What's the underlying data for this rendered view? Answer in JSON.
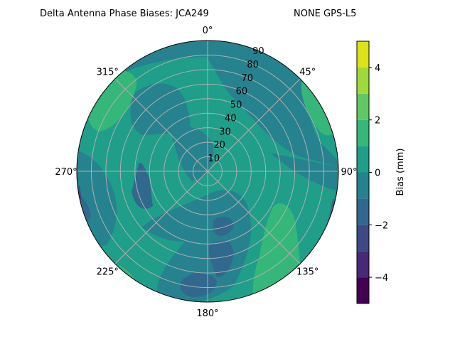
{
  "chart_data": {
    "type": "contour",
    "projection": "polar",
    "title": "Delta Antenna Phase Biases: JCA249         NONE GPS-L5",
    "title_left": "Delta Antenna Phase Biases: JCA249",
    "title_right": "NONE GPS-L5",
    "theta_ticks": [
      "0°",
      "45°",
      "90°",
      "135°",
      "180°",
      "225°",
      "270°",
      "315°"
    ],
    "theta_tick_angles": [
      0,
      45,
      90,
      135,
      180,
      225,
      270,
      315
    ],
    "theta_direction": "clockwise",
    "theta_zero": "top",
    "r_ticks": [
      "10",
      "20",
      "30",
      "40",
      "50",
      "60",
      "70",
      "80",
      "90"
    ],
    "r_tick_values": [
      10,
      20,
      30,
      40,
      50,
      60,
      70,
      80,
      90
    ],
    "r_range": [
      0,
      90
    ],
    "grid": true,
    "colorbar": {
      "label": "Bias (mm)",
      "range": [
        -5,
        5
      ],
      "levels": [
        -5,
        -4,
        -3,
        -2,
        -1,
        0,
        1,
        2,
        3,
        4,
        5
      ],
      "ticks": [
        "−4",
        "−2",
        "0",
        "2",
        "4"
      ],
      "tick_values": [
        -4,
        -2,
        0,
        2,
        4
      ],
      "colormap": "viridis",
      "colors": [
        "#440154",
        "#482878",
        "#3e4989",
        "#31688e",
        "#26828e",
        "#1f9e89",
        "#35b779",
        "#5ec962",
        "#9fda3a",
        "#dde318"
      ]
    },
    "value_range_visible": [
      -3,
      2
    ]
  }
}
